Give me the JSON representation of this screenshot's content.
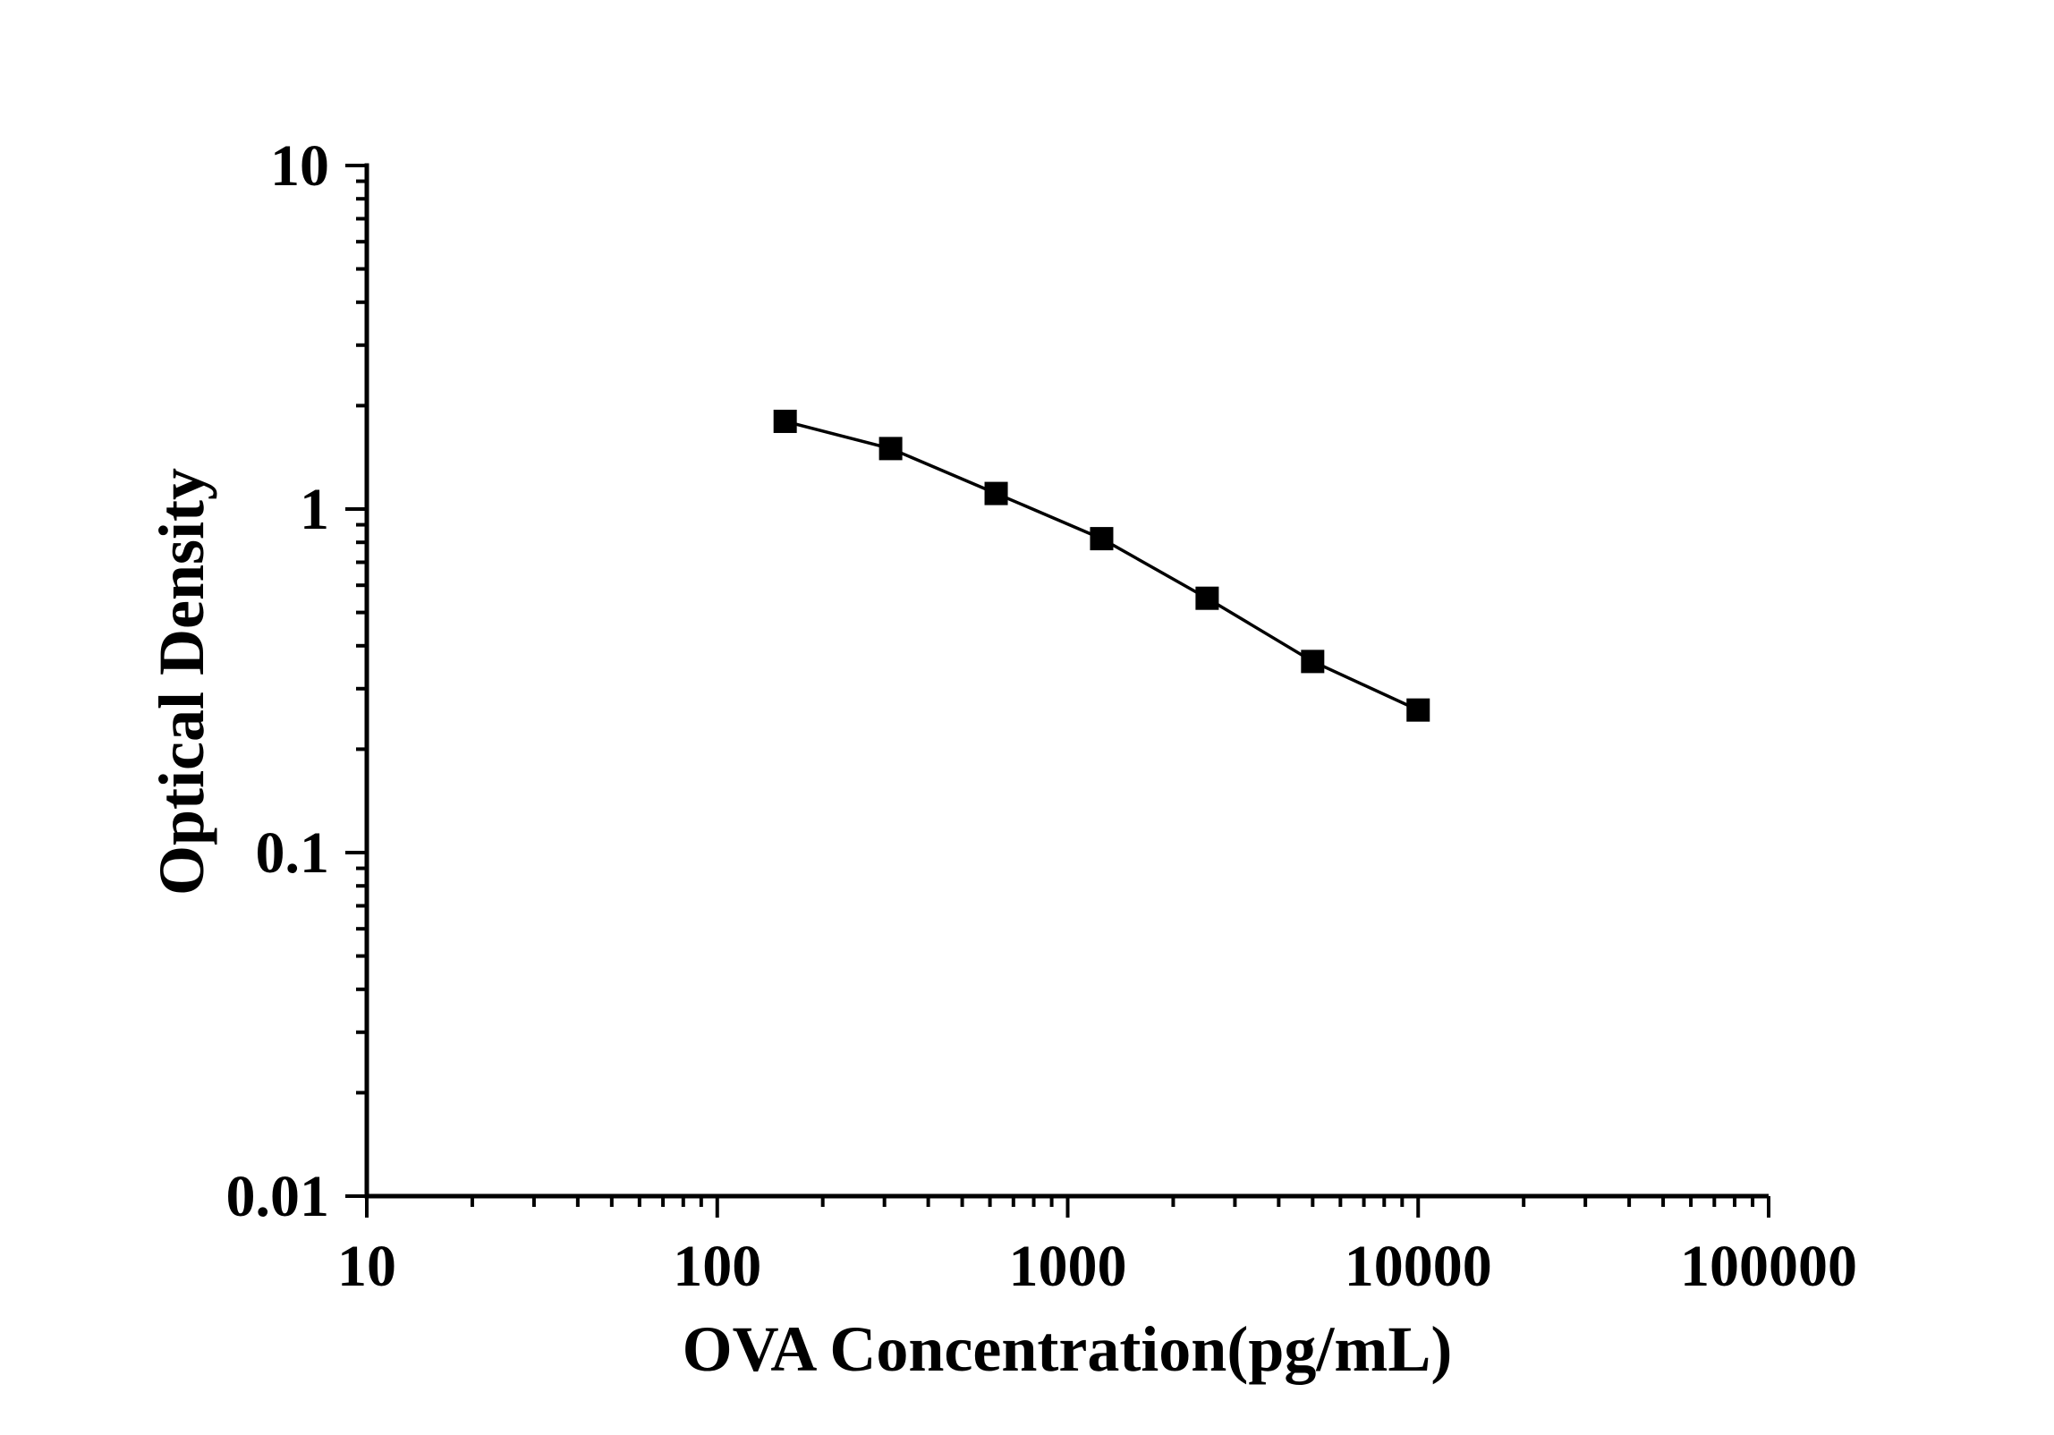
{
  "chart_data": {
    "type": "line",
    "title": "",
    "xlabel": "OVA Concentration(pg/mL)",
    "ylabel": "Optical Density",
    "x_scale": "log",
    "y_scale": "log",
    "xlim": [
      10,
      100000
    ],
    "ylim": [
      0.01,
      10
    ],
    "x_tick_labels": [
      "10",
      "100",
      "1000",
      "10000",
      "100000"
    ],
    "y_tick_labels": [
      "10",
      "1",
      "0.1",
      "0.01"
    ],
    "grid": false,
    "legend": false,
    "background_color": "#ffffff",
    "axis_color": "#000000",
    "series": [
      {
        "marker": "filled-square",
        "line_color": "#000000",
        "marker_color": "#000000",
        "x": [
          156.25,
          312.5,
          625,
          1250,
          2500,
          5000,
          10000
        ],
        "y": [
          1.8,
          1.5,
          1.11,
          0.82,
          0.55,
          0.36,
          0.26
        ]
      }
    ]
  }
}
